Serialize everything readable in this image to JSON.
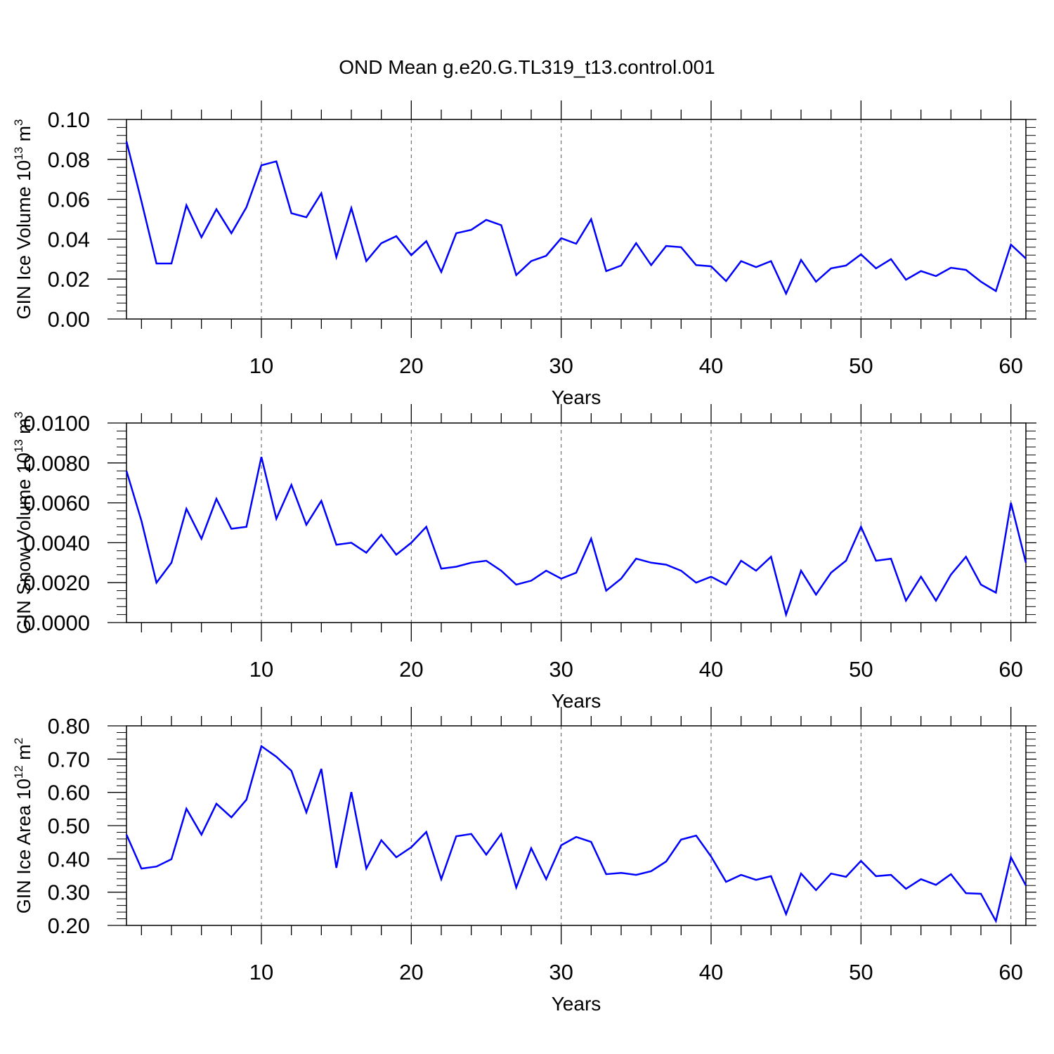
{
  "title": "OND Mean g.e20.G.TL319_t13.control.001",
  "chart_data": [
    {
      "type": "line",
      "ylabel": "GIN Ice Volume 10",
      "ylabel_exp": "13",
      "ylabel_unit": " m",
      "ylabel_unit_exp": "3",
      "xlabel": "Years",
      "xlim": [
        1,
        61
      ],
      "ylim": [
        0,
        0.1
      ],
      "yticks": [
        "0.00",
        "0.02",
        "0.04",
        "0.06",
        "0.08",
        "0.10"
      ],
      "xticks": [
        "10",
        "20",
        "30",
        "40",
        "50",
        "60"
      ],
      "grid": "vertical dashed at major x ticks",
      "color": "#0000ff",
      "x_start": 1,
      "values": [
        0.089,
        0.059,
        0.0278,
        0.0278,
        0.057,
        0.041,
        0.055,
        0.043,
        0.056,
        0.077,
        0.079,
        0.053,
        0.051,
        0.063,
        0.031,
        0.0556,
        0.029,
        0.038,
        0.0415,
        0.032,
        0.039,
        0.0236,
        0.043,
        0.0447,
        0.0497,
        0.047,
        0.022,
        0.029,
        0.0317,
        0.0405,
        0.0377,
        0.05,
        0.024,
        0.0268,
        0.038,
        0.027,
        0.0366,
        0.036,
        0.027,
        0.0264,
        0.019,
        0.029,
        0.026,
        0.029,
        0.0127,
        0.0296,
        0.0187,
        0.0254,
        0.0268,
        0.0324,
        0.0254,
        0.03,
        0.0197,
        0.024,
        0.0215,
        0.0257,
        0.0246,
        0.0187,
        0.014,
        0.0373,
        0.0303
      ]
    },
    {
      "type": "line",
      "ylabel": "GIN Snow Volume 10",
      "ylabel_exp": "13",
      "ylabel_unit": " m",
      "ylabel_unit_exp": "3",
      "xlabel": "Years",
      "xlim": [
        1,
        61
      ],
      "ylim": [
        0,
        0.01
      ],
      "yticks": [
        "0.0000",
        "0.0020",
        "0.0040",
        "0.0060",
        "0.0080",
        "0.0100"
      ],
      "xticks": [
        "10",
        "20",
        "30",
        "40",
        "50",
        "60"
      ],
      "grid": "vertical dashed at major x ticks",
      "color": "#0000ff",
      "x_start": 1,
      "values": [
        0.0076,
        0.0051,
        0.002,
        0.003,
        0.0057,
        0.0042,
        0.0062,
        0.0047,
        0.0048,
        0.0083,
        0.0052,
        0.0069,
        0.0049,
        0.0061,
        0.0039,
        0.004,
        0.0035,
        0.0044,
        0.0034,
        0.004,
        0.0048,
        0.0027,
        0.0028,
        0.003,
        0.0031,
        0.0026,
        0.0019,
        0.0021,
        0.0026,
        0.0022,
        0.0025,
        0.0042,
        0.0016,
        0.0022,
        0.0032,
        0.003,
        0.0029,
        0.0026,
        0.002,
        0.0023,
        0.0019,
        0.0031,
        0.0026,
        0.0033,
        0.0004,
        0.0026,
        0.0014,
        0.0025,
        0.0031,
        0.0048,
        0.0031,
        0.0032,
        0.0011,
        0.0023,
        0.0011,
        0.0024,
        0.0033,
        0.0019,
        0.0015,
        0.006,
        0.003
      ]
    },
    {
      "type": "line",
      "ylabel": "GIN Ice Area 10",
      "ylabel_exp": "12",
      "ylabel_unit": " m",
      "ylabel_unit_exp": "2",
      "xlabel": "Years",
      "xlim": [
        1,
        61
      ],
      "ylim": [
        0.2,
        0.8
      ],
      "yticks": [
        "0.20",
        "0.30",
        "0.40",
        "0.50",
        "0.60",
        "0.70",
        "0.80"
      ],
      "xticks": [
        "10",
        "20",
        "30",
        "40",
        "50",
        "60"
      ],
      "grid": "vertical dashed at major x ticks",
      "color": "#0000ff",
      "x_start": 1,
      "values": [
        0.473,
        0.371,
        0.377,
        0.399,
        0.551,
        0.473,
        0.566,
        0.525,
        0.578,
        0.739,
        0.707,
        0.665,
        0.54,
        0.671,
        0.373,
        0.601,
        0.371,
        0.456,
        0.405,
        0.435,
        0.481,
        0.339,
        0.468,
        0.475,
        0.413,
        0.475,
        0.314,
        0.432,
        0.339,
        0.441,
        0.466,
        0.451,
        0.354,
        0.358,
        0.352,
        0.363,
        0.392,
        0.458,
        0.47,
        0.407,
        0.331,
        0.352,
        0.337,
        0.348,
        0.234,
        0.356,
        0.306,
        0.356,
        0.346,
        0.394,
        0.348,
        0.352,
        0.31,
        0.339,
        0.322,
        0.354,
        0.297,
        0.295,
        0.213,
        0.405,
        0.32
      ]
    }
  ]
}
